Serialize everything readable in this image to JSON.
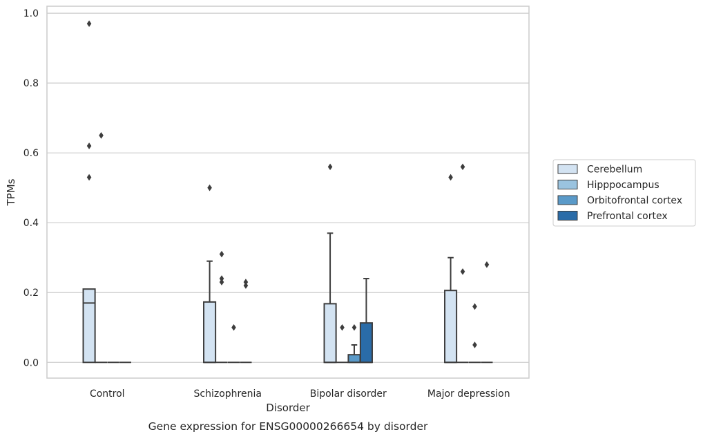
{
  "chart_data": {
    "type": "box",
    "title": "",
    "caption": "Gene expression for ENSG00000266654 by disorder",
    "xlabel": "Disorder",
    "ylabel": "TPMs",
    "ylim": [
      -0.045,
      1.02
    ],
    "yticks": [
      0.0,
      0.2,
      0.4,
      0.6,
      0.8,
      1.0
    ],
    "ytick_labels": [
      "0.0",
      "0.2",
      "0.4",
      "0.6",
      "0.8",
      "1.0"
    ],
    "grid": "horizontal",
    "categories": [
      "Control",
      "Schizophrenia",
      "Bipolar disorder",
      "Major depression"
    ],
    "legend": {
      "placement": "right",
      "entries": [
        "Cerebellum",
        "Hipppocampus",
        "Orbitofrontal cortex",
        "Prefrontal cortex"
      ]
    },
    "series": [
      {
        "name": "Cerebellum",
        "color": "#d3e3f2",
        "boxes": [
          {
            "q1": 0.0,
            "median": 0.17,
            "q3": 0.21,
            "whisker_low": 0.0,
            "whisker_high": 0.21,
            "outliers": [
              0.97,
              0.62,
              0.53
            ]
          },
          {
            "q1": 0.0,
            "median": 0.0,
            "q3": 0.173,
            "whisker_low": 0.0,
            "whisker_high": 0.29,
            "outliers": [
              0.5
            ]
          },
          {
            "q1": 0.0,
            "median": 0.0,
            "q3": 0.168,
            "whisker_low": 0.0,
            "whisker_high": 0.37,
            "outliers": [
              0.56
            ]
          },
          {
            "q1": 0.0,
            "median": 0.0,
            "q3": 0.206,
            "whisker_low": 0.0,
            "whisker_high": 0.3,
            "outliers": [
              0.53
            ]
          }
        ]
      },
      {
        "name": "Hipppocampus",
        "color": "#9ac3df",
        "boxes": [
          {
            "q1": 0.0,
            "median": 0.0,
            "q3": 0.0,
            "whisker_low": 0.0,
            "whisker_high": 0.0,
            "outliers": [
              0.65
            ]
          },
          {
            "q1": 0.0,
            "median": 0.0,
            "q3": 0.0,
            "whisker_low": 0.0,
            "whisker_high": 0.0,
            "outliers": [
              0.31,
              0.24,
              0.23
            ]
          },
          {
            "q1": 0.0,
            "median": 0.0,
            "q3": 0.0,
            "whisker_low": 0.0,
            "whisker_high": 0.0,
            "outliers": [
              0.1
            ]
          },
          {
            "q1": 0.0,
            "median": 0.0,
            "q3": 0.0,
            "whisker_low": 0.0,
            "whisker_high": 0.0,
            "outliers": [
              0.56,
              0.26
            ]
          }
        ]
      },
      {
        "name": "Orbitofrontal cortex",
        "color": "#5a9ac9",
        "boxes": [
          {
            "q1": 0.0,
            "median": 0.0,
            "q3": 0.0,
            "whisker_low": 0.0,
            "whisker_high": 0.0,
            "outliers": []
          },
          {
            "q1": 0.0,
            "median": 0.0,
            "q3": 0.0,
            "whisker_low": 0.0,
            "whisker_high": 0.0,
            "outliers": [
              0.1
            ]
          },
          {
            "q1": 0.0,
            "median": 0.0,
            "q3": 0.022,
            "whisker_low": 0.0,
            "whisker_high": 0.05,
            "outliers": [
              0.1
            ]
          },
          {
            "q1": 0.0,
            "median": 0.0,
            "q3": 0.0,
            "whisker_low": 0.0,
            "whisker_high": 0.0,
            "outliers": [
              0.16,
              0.05
            ]
          }
        ]
      },
      {
        "name": "Prefrontal cortex",
        "color": "#2a6ca8",
        "boxes": [
          {
            "q1": 0.0,
            "median": 0.0,
            "q3": 0.0,
            "whisker_low": 0.0,
            "whisker_high": 0.0,
            "outliers": []
          },
          {
            "q1": 0.0,
            "median": 0.0,
            "q3": 0.0,
            "whisker_low": 0.0,
            "whisker_high": 0.0,
            "outliers": [
              0.23,
              0.22
            ]
          },
          {
            "q1": 0.0,
            "median": 0.0,
            "q3": 0.113,
            "whisker_low": 0.0,
            "whisker_high": 0.24,
            "outliers": []
          },
          {
            "q1": 0.0,
            "median": 0.0,
            "q3": 0.0,
            "whisker_low": 0.0,
            "whisker_high": 0.0,
            "outliers": [
              0.28
            ]
          }
        ]
      }
    ]
  }
}
